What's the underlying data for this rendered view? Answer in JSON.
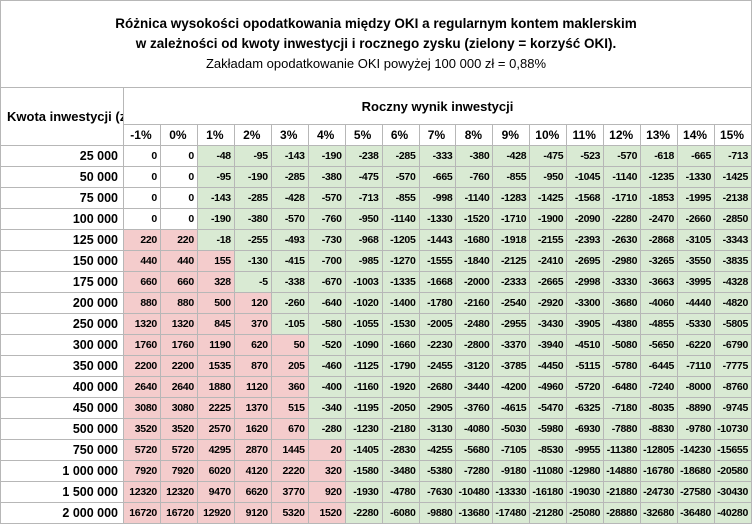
{
  "colors": {
    "positive_bg": "#f4cccc",
    "negative_bg": "#d9ead3",
    "zero_bg": "#ffffff",
    "grid_border": "#b7b7b7",
    "text": "#000000"
  },
  "chart_data": {
    "type": "heatmap",
    "title": "Różnica wysokości opodatkowania między OKI a regularnym kontem maklerskim",
    "subtitle": "w zależności od kwoty inwestycji i rocznego zysku (zielony = korzyść OKI).",
    "note": "Zakładam opodatkowanie OKI powyżej 100 000 zł = 0,88%",
    "row_axis_label": "Kwota inwestycji (zł)",
    "col_axis_label": "Roczny wynik inwestycji",
    "categories": [
      "-1%",
      "0%",
      "1%",
      "2%",
      "3%",
      "4%",
      "5%",
      "6%",
      "7%",
      "8%",
      "9%",
      "10%",
      "11%",
      "12%",
      "13%",
      "14%",
      "15%"
    ],
    "color_rule": "value > 0 pink (OKI worse), value < 0 green (OKI benefit), value = 0 white",
    "rows": [
      {
        "label": "25 000",
        "values": [
          0,
          0,
          -48,
          -95,
          -143,
          -190,
          -238,
          -285,
          -333,
          -380,
          -428,
          -475,
          -523,
          -570,
          -618,
          -665,
          -713
        ]
      },
      {
        "label": "50 000",
        "values": [
          0,
          0,
          -95,
          -190,
          -285,
          -380,
          -475,
          -570,
          -665,
          -760,
          -855,
          -950,
          -1045,
          -1140,
          -1235,
          -1330,
          -1425
        ]
      },
      {
        "label": "75 000",
        "values": [
          0,
          0,
          -143,
          -285,
          -428,
          -570,
          -713,
          -855,
          -998,
          -1140,
          -1283,
          -1425,
          -1568,
          -1710,
          -1853,
          -1995,
          -2138
        ]
      },
      {
        "label": "100 000",
        "values": [
          0,
          0,
          -190,
          -380,
          -570,
          -760,
          -950,
          -1140,
          -1330,
          -1520,
          -1710,
          -1900,
          -2090,
          -2280,
          -2470,
          -2660,
          -2850
        ]
      },
      {
        "label": "125 000",
        "values": [
          220,
          220,
          -18,
          -255,
          -493,
          -730,
          -968,
          -1205,
          -1443,
          -1680,
          -1918,
          -2155,
          -2393,
          -2630,
          -2868,
          -3105,
          -3343
        ]
      },
      {
        "label": "150 000",
        "values": [
          440,
          440,
          155,
          -130,
          -415,
          -700,
          -985,
          -1270,
          -1555,
          -1840,
          -2125,
          -2410,
          -2695,
          -2980,
          -3265,
          -3550,
          -3835
        ]
      },
      {
        "label": "175 000",
        "values": [
          660,
          660,
          328,
          -5,
          -338,
          -670,
          -1003,
          -1335,
          -1668,
          -2000,
          -2333,
          -2665,
          -2998,
          -3330,
          -3663,
          -3995,
          -4328
        ]
      },
      {
        "label": "200 000",
        "values": [
          880,
          880,
          500,
          120,
          -260,
          -640,
          -1020,
          -1400,
          -1780,
          -2160,
          -2540,
          -2920,
          -3300,
          -3680,
          -4060,
          -4440,
          -4820
        ]
      },
      {
        "label": "250 000",
        "values": [
          1320,
          1320,
          845,
          370,
          -105,
          -580,
          -1055,
          -1530,
          -2005,
          -2480,
          -2955,
          -3430,
          -3905,
          -4380,
          -4855,
          -5330,
          -5805
        ]
      },
      {
        "label": "300 000",
        "values": [
          1760,
          1760,
          1190,
          620,
          50,
          -520,
          -1090,
          -1660,
          -2230,
          -2800,
          -3370,
          -3940,
          -4510,
          -5080,
          -5650,
          -6220,
          -6790
        ]
      },
      {
        "label": "350 000",
        "values": [
          2200,
          2200,
          1535,
          870,
          205,
          -460,
          -1125,
          -1790,
          -2455,
          -3120,
          -3785,
          -4450,
          -5115,
          -5780,
          -6445,
          -7110,
          -7775
        ]
      },
      {
        "label": "400 000",
        "values": [
          2640,
          2640,
          1880,
          1120,
          360,
          -400,
          -1160,
          -1920,
          -2680,
          -3440,
          -4200,
          -4960,
          -5720,
          -6480,
          -7240,
          -8000,
          -8760
        ]
      },
      {
        "label": "450 000",
        "values": [
          3080,
          3080,
          2225,
          1370,
          515,
          -340,
          -1195,
          -2050,
          -2905,
          -3760,
          -4615,
          -5470,
          -6325,
          -7180,
          -8035,
          -8890,
          -9745
        ]
      },
      {
        "label": "500 000",
        "values": [
          3520,
          3520,
          2570,
          1620,
          670,
          -280,
          -1230,
          -2180,
          -3130,
          -4080,
          -5030,
          -5980,
          -6930,
          -7880,
          -8830,
          -9780,
          -10730
        ]
      },
      {
        "label": "750 000",
        "values": [
          5720,
          5720,
          4295,
          2870,
          1445,
          20,
          -1405,
          -2830,
          -4255,
          -5680,
          -7105,
          -8530,
          -9955,
          -11380,
          -12805,
          -14230,
          -15655
        ]
      },
      {
        "label": "1 000 000",
        "values": [
          7920,
          7920,
          6020,
          4120,
          2220,
          320,
          -1580,
          -3480,
          -5380,
          -7280,
          -9180,
          -11080,
          -12980,
          -14880,
          -16780,
          -18680,
          -20580
        ]
      },
      {
        "label": "1 500 000",
        "values": [
          12320,
          12320,
          9470,
          6620,
          3770,
          920,
          -1930,
          -4780,
          -7630,
          -10480,
          -13330,
          -16180,
          -19030,
          -21880,
          -24730,
          -27580,
          -30430
        ]
      },
      {
        "label": "2 000 000",
        "values": [
          16720,
          16720,
          12920,
          9120,
          5320,
          1520,
          -2280,
          -6080,
          -9880,
          -13680,
          -17480,
          -21280,
          -25080,
          -28880,
          -32680,
          -36480,
          -40280
        ]
      }
    ]
  }
}
